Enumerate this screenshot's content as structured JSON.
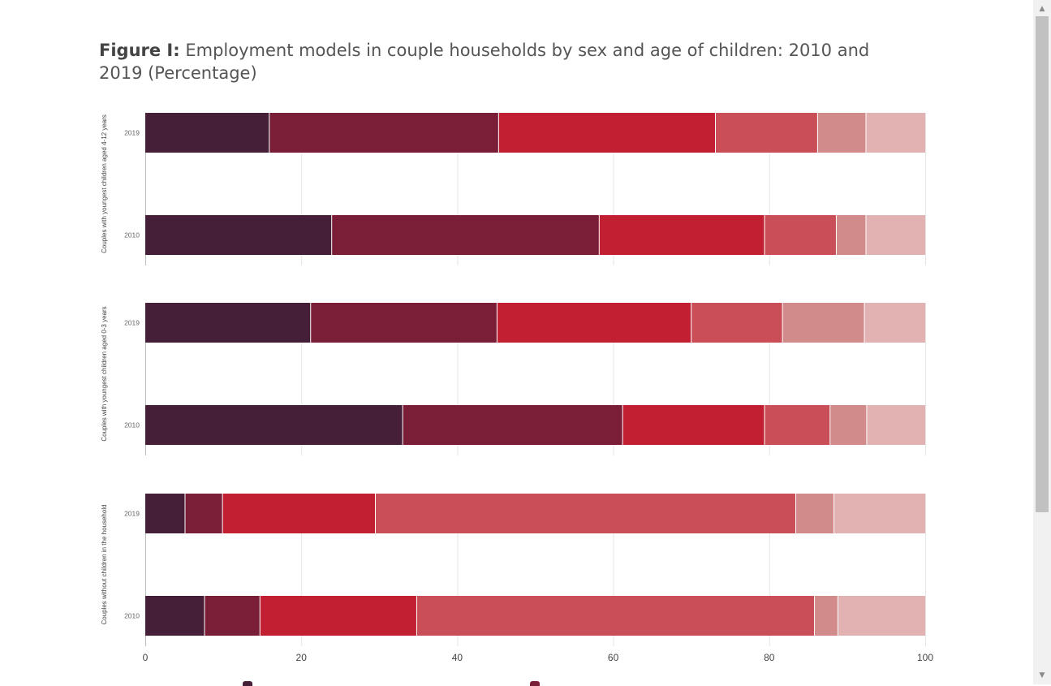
{
  "title": {
    "label": "Figure I:",
    "text": "Employment models in couple households by sex and age of children: 2010 and 2019 (Percentage)"
  },
  "colors": [
    "#451e38",
    "#7a1e37",
    "#c22032",
    "#c94e58",
    "#d08b8a",
    "#e2b2b3"
  ],
  "legend_hint_colors": [
    "#451e38",
    "#7a1e37"
  ],
  "scrollbar": {
    "up_icon": "triangle-up-icon",
    "down_icon": "triangle-down-icon"
  },
  "chart_data": {
    "type": "bar",
    "orientation": "horizontal",
    "stacked": true,
    "xlim": [
      0,
      100
    ],
    "xticks": [
      "0",
      "20",
      "40",
      "60",
      "80",
      "100"
    ],
    "grid": true,
    "groups": [
      {
        "label": "Couples with youngest children aged 4-12 years",
        "bars": [
          {
            "year": "2019",
            "values": [
              15.9,
              29.4,
              27.8,
              13.1,
              6.2,
              7.6
            ]
          },
          {
            "year": "2010",
            "values": [
              23.9,
              34.3,
              21.2,
              9.2,
              3.8,
              7.6
            ]
          }
        ]
      },
      {
        "label": "Couples with youngest children aged 0-3 years",
        "bars": [
          {
            "year": "2019",
            "values": [
              21.2,
              23.9,
              24.9,
              11.7,
              10.5,
              7.8
            ]
          },
          {
            "year": "2010",
            "values": [
              33.0,
              28.2,
              18.2,
              8.4,
              4.7,
              7.5
            ]
          }
        ]
      },
      {
        "label": "Couples without children in the household",
        "bars": [
          {
            "year": "2019",
            "values": [
              5.1,
              4.8,
              19.6,
              53.9,
              4.9,
              11.7
            ]
          },
          {
            "year": "2010",
            "values": [
              7.6,
              7.1,
              20.1,
              51.0,
              3.0,
              11.2
            ]
          }
        ]
      }
    ]
  }
}
